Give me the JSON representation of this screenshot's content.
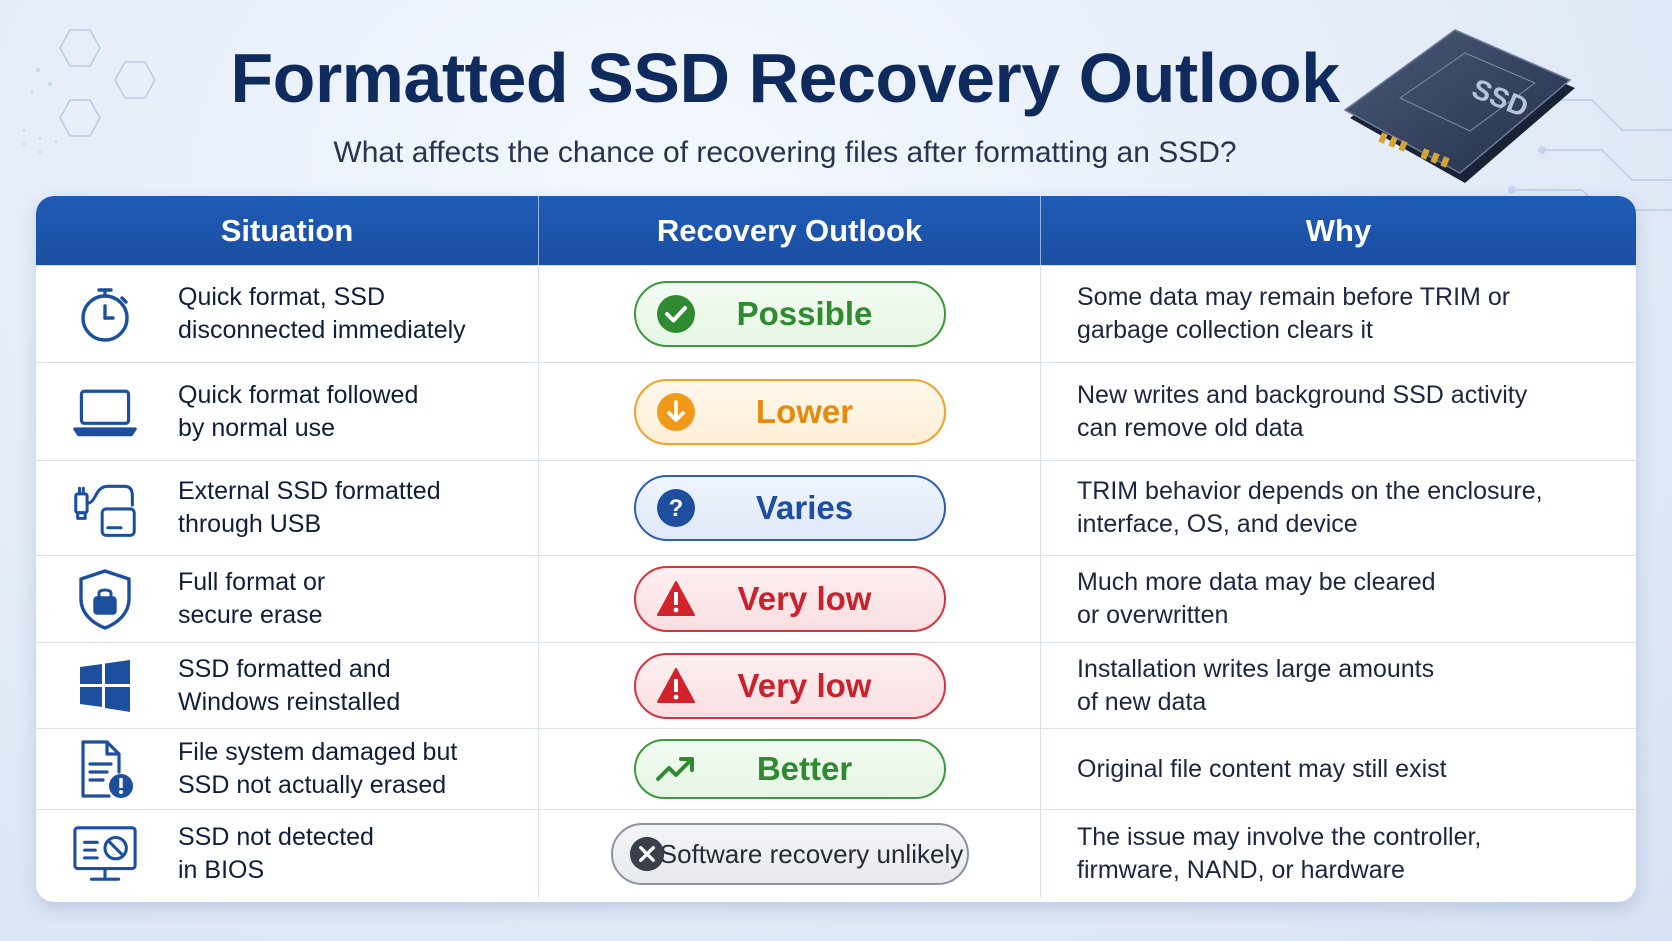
{
  "title": "Formatted SSD Recovery Outlook",
  "subtitle": "What affects the chance of recovering files after formatting an SSD?",
  "ssd_label": "SSD",
  "headers": {
    "situation": "Situation",
    "outlook": "Recovery Outlook",
    "why": "Why"
  },
  "colors": {
    "header_blue": "#1f5bb5",
    "title_navy": "#0f2a5c",
    "green": "#2f8a31",
    "orange": "#e48a10",
    "blue": "#1e4ea0",
    "red": "#c9222c",
    "gray": "#262b35"
  },
  "rows": [
    {
      "icon": "stopwatch-icon",
      "situation_line1": "Quick format, SSD",
      "situation_line2": "disconnected immediately",
      "outlook": "Possible",
      "outlook_icon": "check-circle-icon",
      "why_line1": "Some data may remain before TRIM or",
      "why_line2": "garbage collection clears it"
    },
    {
      "icon": "laptop-icon",
      "situation_line1": "Quick format followed",
      "situation_line2": "by normal use",
      "outlook": "Lower",
      "outlook_icon": "arrow-down-circle-icon",
      "why_line1": "New writes and background SSD activity",
      "why_line2": "can remove old data"
    },
    {
      "icon": "usb-drive-icon",
      "situation_line1": "External SSD formatted",
      "situation_line2": "through USB",
      "outlook": "Varies",
      "outlook_icon": "question-circle-icon",
      "why_line1": "TRIM behavior depends on the enclosure,",
      "why_line2": "interface, OS, and device"
    },
    {
      "icon": "shield-lock-icon",
      "situation_line1": "Full format or",
      "situation_line2": "secure erase",
      "outlook": "Very low",
      "outlook_icon": "warning-triangle-icon",
      "why_line1": "Much more data may be cleared",
      "why_line2": "or overwritten"
    },
    {
      "icon": "windows-logo-icon",
      "situation_line1": "SSD formatted and",
      "situation_line2": "Windows reinstalled",
      "outlook": "Very low",
      "outlook_icon": "warning-triangle-icon",
      "why_line1": "Installation writes large amounts",
      "why_line2": "of new data"
    },
    {
      "icon": "document-alert-icon",
      "situation_line1": "File system damaged but",
      "situation_line2": "SSD not actually erased",
      "outlook": "Better",
      "outlook_icon": "trend-up-icon",
      "why_line1": "Original file content may still exist",
      "why_line2": ""
    },
    {
      "icon": "monitor-blocked-icon",
      "situation_line1": "SSD not detected",
      "situation_line2": "in BIOS",
      "outlook": "Software recovery unlikely",
      "outlook_icon": "x-circle-icon",
      "why_line1": "The issue may involve the controller,",
      "why_line2": "firmware, NAND, or hardware"
    }
  ]
}
